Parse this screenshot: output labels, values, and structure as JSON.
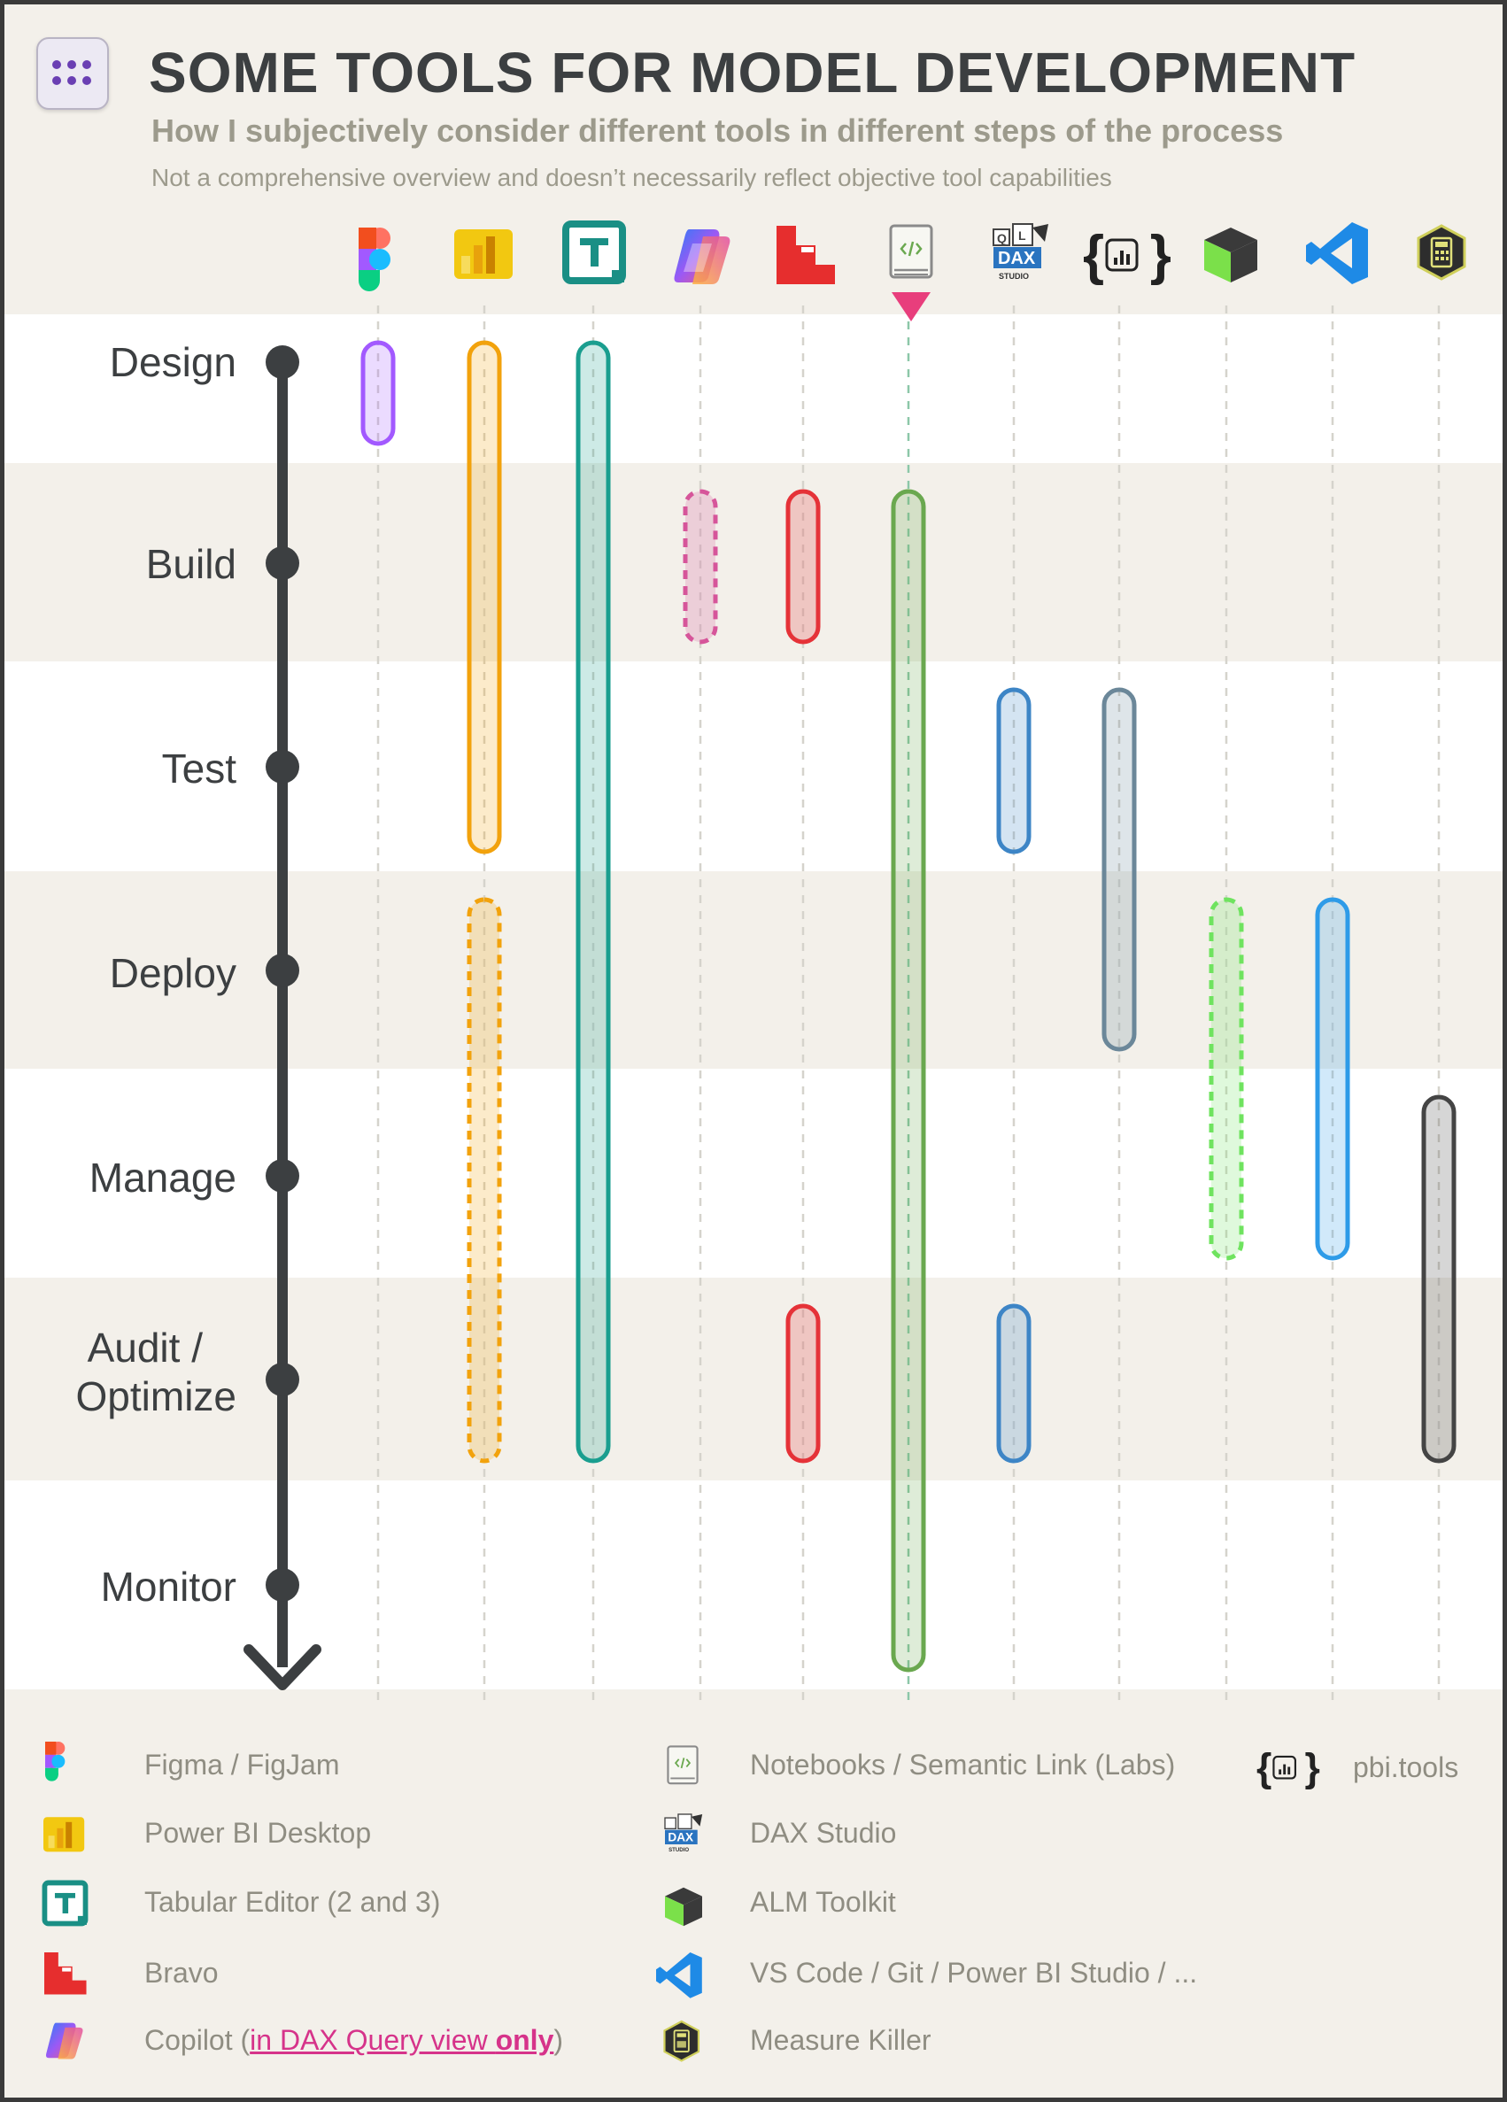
{
  "header": {
    "title": "SOME TOOLS FOR MODEL DEVELOPMENT",
    "subtitle": "How I subjectively consider different tools in different steps of the process",
    "note": "Not a comprehensive overview and doesn’t necessarily reflect objective tool capabilities"
  },
  "stages": [
    {
      "id": "design",
      "label": "Design"
    },
    {
      "id": "build",
      "label": "Build"
    },
    {
      "id": "test",
      "label": "Test"
    },
    {
      "id": "deploy",
      "label": "Deploy"
    },
    {
      "id": "manage",
      "label": "Manage"
    },
    {
      "id": "audit",
      "label": "Audit / Optimize",
      "line1": "Audit /",
      "line2": "Optimize"
    },
    {
      "id": "monitor",
      "label": "Monitor"
    }
  ],
  "tools": [
    {
      "id": "figma",
      "icon": "figma-icon"
    },
    {
      "id": "powerbi",
      "icon": "power-bi-icon"
    },
    {
      "id": "tabular",
      "icon": "tabular-editor-icon"
    },
    {
      "id": "copilot",
      "icon": "copilot-icon"
    },
    {
      "id": "bravo",
      "icon": "bravo-icon"
    },
    {
      "id": "notebooks",
      "icon": "notebook-icon"
    },
    {
      "id": "daxstudio",
      "icon": "dax-studio-icon"
    },
    {
      "id": "pbitools",
      "icon": "pbi-tools-icon"
    },
    {
      "id": "alm",
      "icon": "alm-toolkit-icon"
    },
    {
      "id": "vscode",
      "icon": "vscode-icon"
    },
    {
      "id": "measurekiller",
      "icon": "measure-killer-icon"
    }
  ],
  "icon_text": {
    "dax_q": "Q",
    "dax_l": "L",
    "dax_word": "DAX",
    "dax_sub": "STUDIO",
    "pbi_braces": "{   }"
  },
  "usage": [
    {
      "tool": "figma",
      "from_stage": "Design",
      "to_stage": "Design",
      "style": "solid",
      "color": "#a259ff"
    },
    {
      "tool": "powerbi",
      "from_stage": "Design",
      "to_stage": "Test",
      "style": "solid",
      "color": "#f2a20c"
    },
    {
      "tool": "powerbi",
      "from_stage": "Deploy",
      "to_stage": "Audit / Optimize",
      "style": "dashed",
      "color": "#f2a20c"
    },
    {
      "tool": "tabular",
      "from_stage": "Design",
      "to_stage": "Audit / Optimize",
      "style": "solid",
      "color": "#1a9e8f"
    },
    {
      "tool": "copilot",
      "from_stage": "Build",
      "to_stage": "Build",
      "style": "dashed",
      "color": "#d6559a"
    },
    {
      "tool": "bravo",
      "from_stage": "Build",
      "to_stage": "Build",
      "style": "solid",
      "color": "#e53238"
    },
    {
      "tool": "bravo",
      "from_stage": "Audit / Optimize",
      "to_stage": "Audit / Optimize",
      "style": "solid",
      "color": "#e53238"
    },
    {
      "tool": "notebooks",
      "from_stage": "Build",
      "to_stage": "Monitor",
      "style": "solid",
      "color": "#6aa84f"
    },
    {
      "tool": "daxstudio",
      "from_stage": "Test",
      "to_stage": "Test",
      "style": "solid",
      "color": "#3d85c6"
    },
    {
      "tool": "daxstudio",
      "from_stage": "Audit / Optimize",
      "to_stage": "Audit / Optimize",
      "style": "solid",
      "color": "#3d85c6"
    },
    {
      "tool": "pbitools",
      "from_stage": "Test",
      "to_stage": "Deploy",
      "style": "solid",
      "color": "#6b8799"
    },
    {
      "tool": "alm",
      "from_stage": "Deploy",
      "to_stage": "Manage",
      "style": "dashed",
      "color": "#6fe35f"
    },
    {
      "tool": "vscode",
      "from_stage": "Deploy",
      "to_stage": "Manage",
      "style": "solid",
      "color": "#2e9be8"
    },
    {
      "tool": "measurekiller",
      "from_stage": "Manage",
      "to_stage": "Audit / Optimize",
      "style": "solid",
      "color": "#444444"
    }
  ],
  "legend": {
    "figma": "Figma / FigJam",
    "powerbi": "Power BI Desktop",
    "tabular": "Tabular Editor (2 and 3)",
    "bravo": "Bravo",
    "copilot_prefix": "Copilot (",
    "copilot_link": "in DAX Query view ",
    "copilot_bold": "only",
    "copilot_suffix": ")",
    "notebooks": "Notebooks / Semantic Link (Labs)",
    "daxstudio": "DAX Studio",
    "alm": "ALM Toolkit",
    "vscode": "VS Code / Git / Power BI Studio / ...",
    "measurekiller": "Measure Killer",
    "pbitools": "pbi.tools"
  }
}
